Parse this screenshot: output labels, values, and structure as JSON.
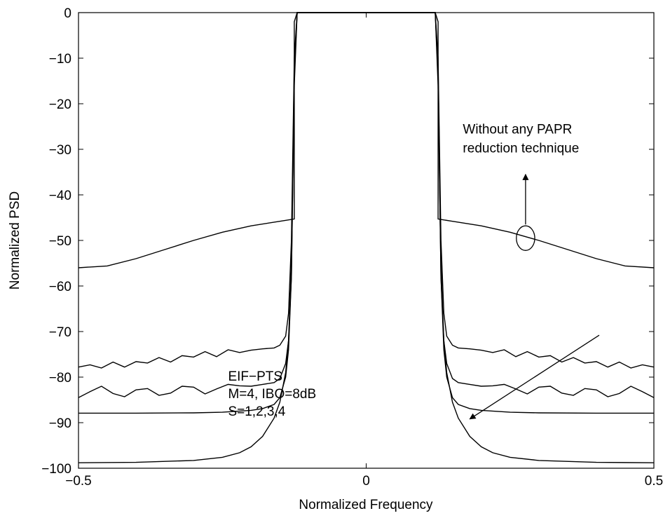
{
  "chart_data": {
    "type": "line",
    "title": "",
    "xlabel": "Normalized Frequency",
    "ylabel": "Normalized PSD",
    "xlim": [
      -0.5,
      0.5
    ],
    "ylim": [
      -100,
      0
    ],
    "xticks": [
      -0.5,
      0,
      0.5
    ],
    "xtick_labels": [
      "−0.5",
      "0",
      "0.5"
    ],
    "yticks": [
      0,
      -10,
      -20,
      -30,
      -40,
      -50,
      -60,
      -70,
      -80,
      -90,
      -100
    ],
    "ytick_labels": [
      "0",
      "−10",
      "−20",
      "−30",
      "−40",
      "−50",
      "−60",
      "−70",
      "−80",
      "−90",
      "−100"
    ],
    "grid": false,
    "legend": "none",
    "passband_edge": 0.12,
    "series": [
      {
        "x": [
          -0.5,
          -0.45,
          -0.4,
          -0.35,
          -0.3,
          -0.25,
          -0.2,
          -0.15,
          -0.125,
          -0.125,
          -0.12,
          0.12,
          0.125,
          0.125,
          0.15,
          0.2,
          0.25,
          0.3,
          0.35,
          0.4,
          0.45,
          0.5
        ],
        "y": [
          -56,
          -55.6,
          -54,
          -52,
          -50,
          -48.2,
          -46.8,
          -45.8,
          -45.3,
          -2,
          0,
          0,
          -2,
          -45.3,
          -45.8,
          -46.8,
          -48.2,
          -50,
          -52,
          -54,
          -55.6,
          -56
        ]
      },
      {
        "x": [
          -0.5,
          -0.48,
          -0.46,
          -0.44,
          -0.42,
          -0.4,
          -0.38,
          -0.36,
          -0.34,
          -0.32,
          -0.3,
          -0.28,
          -0.26,
          -0.24,
          -0.22,
          -0.2,
          -0.18,
          -0.16,
          -0.15,
          -0.14,
          -0.135,
          -0.13,
          -0.125,
          -0.12,
          0.12,
          0.125,
          0.13,
          0.135,
          0.14,
          0.15,
          0.16,
          0.18,
          0.2,
          0.22,
          0.24,
          0.26,
          0.28,
          0.3,
          0.32,
          0.34,
          0.36,
          0.38,
          0.4,
          0.42,
          0.44,
          0.46,
          0.48,
          0.5
        ],
        "y": [
          -77.8,
          -77.3,
          -78,
          -76.7,
          -77.8,
          -76.6,
          -76.9,
          -75.7,
          -76.7,
          -75.3,
          -75.6,
          -74.4,
          -75.5,
          -74,
          -74.6,
          -74.1,
          -73.8,
          -73.6,
          -73,
          -71,
          -66,
          -50,
          -10,
          0,
          0,
          -10,
          -50,
          -66,
          -71,
          -73,
          -73.6,
          -73.8,
          -74.1,
          -74.6,
          -74,
          -75.5,
          -74.4,
          -75.6,
          -75.3,
          -76.7,
          -75.7,
          -76.9,
          -76.6,
          -77.8,
          -76.7,
          -78,
          -77.3,
          -77.8
        ]
      },
      {
        "x": [
          -0.5,
          -0.48,
          -0.46,
          -0.44,
          -0.42,
          -0.4,
          -0.38,
          -0.36,
          -0.34,
          -0.32,
          -0.3,
          -0.28,
          -0.26,
          -0.24,
          -0.22,
          -0.2,
          -0.18,
          -0.16,
          -0.15,
          -0.14,
          -0.135,
          -0.13,
          -0.125,
          -0.12,
          0.12,
          0.125,
          0.13,
          0.135,
          0.14,
          0.15,
          0.16,
          0.18,
          0.2,
          0.22,
          0.24,
          0.26,
          0.28,
          0.3,
          0.32,
          0.34,
          0.36,
          0.38,
          0.4,
          0.42,
          0.44,
          0.46,
          0.48,
          0.5
        ],
        "y": [
          -84.5,
          -83.2,
          -82,
          -83.6,
          -84.3,
          -82.8,
          -82.5,
          -84,
          -83.5,
          -82,
          -82.2,
          -83.7,
          -82.6,
          -81.6,
          -81.9,
          -82,
          -81.6,
          -81.2,
          -80.3,
          -77,
          -72,
          -55,
          -12,
          0,
          0,
          -12,
          -55,
          -72,
          -77,
          -80.3,
          -81.2,
          -81.6,
          -82,
          -81.9,
          -81.6,
          -82.6,
          -83.7,
          -82.2,
          -82,
          -83.5,
          -84,
          -82.5,
          -82.8,
          -84.3,
          -83.6,
          -82,
          -83.2,
          -84.5
        ]
      },
      {
        "x": [
          -0.5,
          -0.4,
          -0.3,
          -0.25,
          -0.2,
          -0.18,
          -0.16,
          -0.15,
          -0.14,
          -0.135,
          -0.13,
          -0.125,
          -0.12,
          0.12,
          0.125,
          0.13,
          0.135,
          0.14,
          0.15,
          0.16,
          0.18,
          0.2,
          0.25,
          0.3,
          0.4,
          0.5
        ],
        "y": [
          -87.9,
          -87.9,
          -87.85,
          -87.7,
          -87.3,
          -86.9,
          -86,
          -84.5,
          -80,
          -74,
          -58,
          -14,
          0,
          0,
          -14,
          -58,
          -74,
          -80,
          -84.5,
          -86,
          -86.9,
          -87.3,
          -87.7,
          -87.85,
          -87.9,
          -87.9
        ]
      },
      {
        "x": [
          -0.5,
          -0.4,
          -0.3,
          -0.25,
          -0.22,
          -0.2,
          -0.18,
          -0.16,
          -0.15,
          -0.14,
          -0.135,
          -0.13,
          -0.125,
          -0.12,
          0.12,
          0.125,
          0.13,
          0.135,
          0.14,
          0.15,
          0.16,
          0.18,
          0.2,
          0.22,
          0.25,
          0.3,
          0.4,
          0.5
        ],
        "y": [
          -98.8,
          -98.7,
          -98.3,
          -97.6,
          -96.6,
          -95.3,
          -93,
          -89,
          -85.5,
          -79,
          -72,
          -58,
          -16,
          0,
          0,
          -16,
          -58,
          -72,
          -79,
          -85.5,
          -89,
          -93,
          -95.3,
          -96.6,
          -97.6,
          -98.3,
          -98.7,
          -98.8
        ]
      }
    ],
    "annotations": {
      "upper_text": [
        "Without any PAPR",
        "reduction technique"
      ],
      "lower_text": [
        "EIF−PTS",
        "M=4, IBO=8dB",
        "S=1,2,3,4"
      ],
      "ellipse_center": [
        0.277,
        -49.5
      ],
      "ellipse_radius": [
        0.016,
        2.7
      ],
      "upper_arrow": {
        "from": [
          0.277,
          -46.5
        ],
        "to": [
          0.277,
          -35.5
        ]
      },
      "lower_arrow": {
        "from": [
          0.405,
          -70.8
        ],
        "to": [
          0.18,
          -89.2
        ]
      }
    }
  }
}
